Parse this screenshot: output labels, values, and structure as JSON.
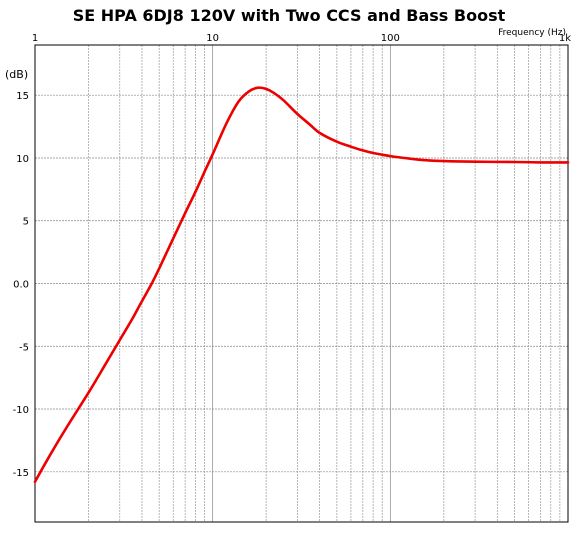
{
  "chart_data": {
    "type": "line",
    "title": "SE HPA 6DJ8 120V with Two CCS and Bass Boost",
    "xlabel": "Frequency   (Hz)",
    "ylabel": "(dB)",
    "xscale": "log",
    "xlim": [
      1,
      1000
    ],
    "ylim": [
      -19,
      19
    ],
    "grid": true,
    "x_ticks": [
      {
        "value": 1,
        "label": "1"
      },
      {
        "value": 10,
        "label": "10"
      },
      {
        "value": 100,
        "label": "100"
      },
      {
        "value": 1000,
        "label": "1k"
      }
    ],
    "y_ticks": [
      {
        "value": 15,
        "label": "15"
      },
      {
        "value": 10,
        "label": "10"
      },
      {
        "value": 5,
        "label": "5"
      },
      {
        "value": 0,
        "label": "0.0"
      },
      {
        "value": -5,
        "label": "-5"
      },
      {
        "value": -10,
        "label": "-10"
      },
      {
        "value": -15,
        "label": "-15"
      }
    ],
    "series": [
      {
        "color": "#ee0000",
        "x": [
          1,
          1.2,
          1.5,
          2,
          2.5,
          3,
          3.5,
          4,
          4.5,
          5,
          6,
          7,
          8,
          9,
          10,
          12,
          14,
          16,
          18,
          20,
          22,
          25,
          30,
          35,
          40,
          50,
          60,
          70,
          80,
          100,
          120,
          150,
          200,
          300,
          500,
          700,
          1000
        ],
        "y": [
          -15.8,
          -13.8,
          -11.5,
          -8.7,
          -6.4,
          -4.5,
          -2.9,
          -1.4,
          -0.1,
          1.2,
          3.6,
          5.6,
          7.3,
          8.9,
          10.3,
          12.8,
          14.5,
          15.3,
          15.6,
          15.5,
          15.2,
          14.6,
          13.5,
          12.7,
          12.0,
          11.3,
          10.9,
          10.6,
          10.4,
          10.15,
          10.0,
          9.85,
          9.75,
          9.7,
          9.68,
          9.65,
          9.65
        ]
      }
    ]
  }
}
